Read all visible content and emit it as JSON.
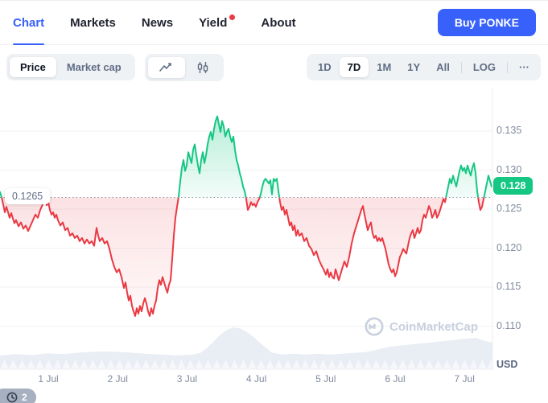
{
  "nav": {
    "tabs": [
      {
        "label": "Chart",
        "active": true,
        "dot": false
      },
      {
        "label": "Markets",
        "active": false,
        "dot": false
      },
      {
        "label": "News",
        "active": false,
        "dot": false
      },
      {
        "label": "Yield",
        "active": false,
        "dot": true
      },
      {
        "label": "About",
        "active": false,
        "dot": false
      }
    ],
    "buy_button_label": "Buy PONKE"
  },
  "toolbar": {
    "metric_toggle": {
      "options": [
        "Price",
        "Market cap"
      ],
      "active": "Price"
    },
    "chart_type_toggle": {
      "options": [
        "line",
        "candlestick"
      ],
      "active": "line"
    },
    "range_selector": {
      "options": [
        "1D",
        "7D",
        "1M",
        "1Y",
        "All"
      ],
      "active": "7D",
      "log_label": "LOG",
      "more_label": "···"
    }
  },
  "chart_data": {
    "type": "line",
    "title": "PONKE 7-day price chart",
    "unit_label": "USD",
    "legend_position": "none",
    "grid": true,
    "baseline_value": 0.1265,
    "baseline_label": "0.1265",
    "current_price_value": 0.128,
    "current_price_label": "0.128",
    "y_ticks": [
      0.11,
      0.115,
      0.12,
      0.125,
      0.13,
      0.135
    ],
    "ylim": [
      0.1075,
      0.1375
    ],
    "x_labels": [
      "1 Jul",
      "2 Jul",
      "3 Jul",
      "4 Jul",
      "5 Jul",
      "6 Jul",
      "7 Jul"
    ],
    "colors": {
      "up": "#16c784",
      "down": "#ea3943",
      "accent": "#3861fb",
      "volume": "#e9edf4"
    },
    "points": [
      [
        0,
        0.1272
      ],
      [
        2,
        0.1265
      ],
      [
        4,
        0.1256
      ],
      [
        6,
        0.1246
      ],
      [
        8,
        0.1253
      ],
      [
        10,
        0.1246
      ],
      [
        12,
        0.1239
      ],
      [
        14,
        0.1245
      ],
      [
        16,
        0.1238
      ],
      [
        18,
        0.1232
      ],
      [
        20,
        0.1236
      ],
      [
        23,
        0.1228
      ],
      [
        26,
        0.1233
      ],
      [
        29,
        0.1225
      ],
      [
        32,
        0.1229
      ],
      [
        35,
        0.1222
      ],
      [
        38,
        0.1229
      ],
      [
        41,
        0.1236
      ],
      [
        44,
        0.1243
      ],
      [
        47,
        0.1239
      ],
      [
        50,
        0.1249
      ],
      [
        53,
        0.1256
      ],
      [
        56,
        0.1262
      ],
      [
        58,
        0.1255
      ],
      [
        60,
        0.1259
      ],
      [
        62,
        0.1249
      ],
      [
        64,
        0.1243
      ],
      [
        66,
        0.1246
      ],
      [
        68,
        0.1239
      ],
      [
        70,
        0.1243
      ],
      [
        72,
        0.1236
      ],
      [
        75,
        0.1229
      ],
      [
        78,
        0.1233
      ],
      [
        81,
        0.1223
      ],
      [
        84,
        0.1226
      ],
      [
        87,
        0.1216
      ],
      [
        90,
        0.1219
      ],
      [
        93,
        0.1213
      ],
      [
        96,
        0.1216
      ],
      [
        99,
        0.1209
      ],
      [
        102,
        0.1213
      ],
      [
        105,
        0.1206
      ],
      [
        108,
        0.1211
      ],
      [
        111,
        0.1206
      ],
      [
        114,
        0.1209
      ],
      [
        117,
        0.1203
      ],
      [
        120,
        0.1226
      ],
      [
        122,
        0.1216
      ],
      [
        124,
        0.1209
      ],
      [
        127,
        0.1213
      ],
      [
        130,
        0.1206
      ],
      [
        133,
        0.1209
      ],
      [
        136,
        0.1199
      ],
      [
        139,
        0.1186
      ],
      [
        142,
        0.1176
      ],
      [
        145,
        0.1169
      ],
      [
        148,
        0.1173
      ],
      [
        151,
        0.1163
      ],
      [
        154,
        0.1149
      ],
      [
        156,
        0.1156
      ],
      [
        158,
        0.1143
      ],
      [
        160,
        0.1133
      ],
      [
        162,
        0.1139
      ],
      [
        164,
        0.1126
      ],
      [
        166,
        0.1119
      ],
      [
        168,
        0.1113
      ],
      [
        170,
        0.1123
      ],
      [
        172,
        0.1116
      ],
      [
        174,
        0.1126
      ],
      [
        176,
        0.1119
      ],
      [
        178,
        0.1129
      ],
      [
        180,
        0.1136
      ],
      [
        182,
        0.1129
      ],
      [
        184,
        0.1119
      ],
      [
        186,
        0.1113
      ],
      [
        188,
        0.1123
      ],
      [
        190,
        0.1116
      ],
      [
        192,
        0.1126
      ],
      [
        194,
        0.1133
      ],
      [
        196,
        0.1149
      ],
      [
        198,
        0.1159
      ],
      [
        200,
        0.1153
      ],
      [
        202,
        0.1163
      ],
      [
        204,
        0.1156
      ],
      [
        206,
        0.1149
      ],
      [
        208,
        0.1143
      ],
      [
        210,
        0.1153
      ],
      [
        212,
        0.1159
      ],
      [
        214,
        0.1186
      ],
      [
        216,
        0.1216
      ],
      [
        218,
        0.1239
      ],
      [
        220,
        0.1253
      ],
      [
        222,
        0.1266
      ],
      [
        224,
        0.1286
      ],
      [
        226,
        0.1303
      ],
      [
        228,
        0.1313
      ],
      [
        230,
        0.1299
      ],
      [
        232,
        0.1306
      ],
      [
        234,
        0.1323
      ],
      [
        236,
        0.1316
      ],
      [
        238,
        0.1309
      ],
      [
        240,
        0.1326
      ],
      [
        242,
        0.1333
      ],
      [
        244,
        0.1319
      ],
      [
        246,
        0.1306
      ],
      [
        248,
        0.1296
      ],
      [
        250,
        0.1313
      ],
      [
        252,
        0.1323
      ],
      [
        254,
        0.1309
      ],
      [
        256,
        0.1319
      ],
      [
        258,
        0.1333
      ],
      [
        260,
        0.1343
      ],
      [
        262,
        0.1349
      ],
      [
        264,
        0.1339
      ],
      [
        266,
        0.1353
      ],
      [
        268,
        0.1363
      ],
      [
        270,
        0.1369
      ],
      [
        272,
        0.1359
      ],
      [
        274,
        0.1349
      ],
      [
        276,
        0.1363
      ],
      [
        278,
        0.1356
      ],
      [
        280,
        0.1343
      ],
      [
        282,
        0.1349
      ],
      [
        284,
        0.1353
      ],
      [
        286,
        0.1343
      ],
      [
        288,
        0.1336
      ],
      [
        290,
        0.1343
      ],
      [
        292,
        0.1326
      ],
      [
        294,
        0.1313
      ],
      [
        296,
        0.1306
      ],
      [
        298,
        0.1296
      ],
      [
        300,
        0.1289
      ],
      [
        302,
        0.1279
      ],
      [
        304,
        0.1273
      ],
      [
        306,
        0.1263
      ],
      [
        308,
        0.1249
      ],
      [
        310,
        0.1253
      ],
      [
        312,
        0.1259
      ],
      [
        314,
        0.1255
      ],
      [
        316,
        0.1257
      ],
      [
        318,
        0.1253
      ],
      [
        320,
        0.1259
      ],
      [
        322,
        0.1263
      ],
      [
        324,
        0.1269
      ],
      [
        326,
        0.1279
      ],
      [
        328,
        0.1286
      ],
      [
        330,
        0.1289
      ],
      [
        332,
        0.1286
      ],
      [
        334,
        0.1283
      ],
      [
        336,
        0.1287
      ],
      [
        338,
        0.1269
      ],
      [
        340,
        0.1289
      ],
      [
        342,
        0.1286
      ],
      [
        344,
        0.1289
      ],
      [
        346,
        0.1273
      ],
      [
        348,
        0.1259
      ],
      [
        350,
        0.1249
      ],
      [
        352,
        0.1253
      ],
      [
        354,
        0.1243
      ],
      [
        356,
        0.1249
      ],
      [
        358,
        0.1239
      ],
      [
        360,
        0.1229
      ],
      [
        362,
        0.1233
      ],
      [
        364,
        0.1223
      ],
      [
        366,
        0.1229
      ],
      [
        368,
        0.1216
      ],
      [
        370,
        0.1223
      ],
      [
        372,
        0.1216
      ],
      [
        375,
        0.1219
      ],
      [
        378,
        0.1209
      ],
      [
        381,
        0.1213
      ],
      [
        384,
        0.1203
      ],
      [
        387,
        0.1199
      ],
      [
        390,
        0.1191
      ],
      [
        393,
        0.1196
      ],
      [
        396,
        0.1186
      ],
      [
        399,
        0.1179
      ],
      [
        402,
        0.1173
      ],
      [
        405,
        0.1166
      ],
      [
        407,
        0.1173
      ],
      [
        409,
        0.1163
      ],
      [
        411,
        0.1169
      ],
      [
        413,
        0.1163
      ],
      [
        415,
        0.1161
      ],
      [
        417,
        0.1173
      ],
      [
        419,
        0.1166
      ],
      [
        421,
        0.1159
      ],
      [
        423,
        0.1166
      ],
      [
        425,
        0.1173
      ],
      [
        428,
        0.1183
      ],
      [
        431,
        0.1176
      ],
      [
        434,
        0.1189
      ],
      [
        437,
        0.1206
      ],
      [
        440,
        0.1219
      ],
      [
        443,
        0.1229
      ],
      [
        446,
        0.1239
      ],
      [
        449,
        0.1249
      ],
      [
        451,
        0.1254
      ],
      [
        453,
        0.1243
      ],
      [
        455,
        0.1233
      ],
      [
        457,
        0.1223
      ],
      [
        459,
        0.1229
      ],
      [
        461,
        0.1233
      ],
      [
        463,
        0.1219
      ],
      [
        465,
        0.1213
      ],
      [
        467,
        0.1216
      ],
      [
        469,
        0.1209
      ],
      [
        471,
        0.1213
      ],
      [
        473,
        0.1209
      ],
      [
        475,
        0.1213
      ],
      [
        477,
        0.1206
      ],
      [
        479,
        0.1199
      ],
      [
        481,
        0.1189
      ],
      [
        483,
        0.1179
      ],
      [
        485,
        0.1173
      ],
      [
        487,
        0.1169
      ],
      [
        489,
        0.1173
      ],
      [
        491,
        0.1164
      ],
      [
        493,
        0.1169
      ],
      [
        495,
        0.1179
      ],
      [
        497,
        0.1189
      ],
      [
        499,
        0.1193
      ],
      [
        501,
        0.1199
      ],
      [
        503,
        0.1196
      ],
      [
        505,
        0.1193
      ],
      [
        507,
        0.1203
      ],
      [
        509,
        0.1213
      ],
      [
        511,
        0.1219
      ],
      [
        513,
        0.1223
      ],
      [
        515,
        0.1213
      ],
      [
        517,
        0.1219
      ],
      [
        519,
        0.1226
      ],
      [
        521,
        0.1219
      ],
      [
        523,
        0.1223
      ],
      [
        525,
        0.1236
      ],
      [
        527,
        0.1243
      ],
      [
        529,
        0.1239
      ],
      [
        531,
        0.1246
      ],
      [
        533,
        0.1254
      ],
      [
        535,
        0.1249
      ],
      [
        537,
        0.1239
      ],
      [
        539,
        0.1243
      ],
      [
        541,
        0.1249
      ],
      [
        543,
        0.1239
      ],
      [
        545,
        0.1243
      ],
      [
        547,
        0.1249
      ],
      [
        549,
        0.1256
      ],
      [
        551,
        0.1263
      ],
      [
        553,
        0.1259
      ],
      [
        555,
        0.1269
      ],
      [
        557,
        0.1279
      ],
      [
        559,
        0.1289
      ],
      [
        561,
        0.1283
      ],
      [
        563,
        0.1293
      ],
      [
        565,
        0.1286
      ],
      [
        567,
        0.1279
      ],
      [
        569,
        0.1289
      ],
      [
        571,
        0.1299
      ],
      [
        573,
        0.1306
      ],
      [
        575,
        0.1299
      ],
      [
        577,
        0.1303
      ],
      [
        579,
        0.1296
      ],
      [
        581,
        0.1306
      ],
      [
        583,
        0.1299
      ],
      [
        585,
        0.1293
      ],
      [
        587,
        0.1303
      ],
      [
        589,
        0.1309
      ],
      [
        591,
        0.1296
      ],
      [
        593,
        0.1273
      ],
      [
        595,
        0.1259
      ],
      [
        597,
        0.1249
      ],
      [
        599,
        0.1253
      ],
      [
        601,
        0.1263
      ],
      [
        603,
        0.1273
      ],
      [
        605,
        0.1283
      ],
      [
        607,
        0.1293
      ],
      [
        609,
        0.1286
      ],
      [
        611,
        0.1279
      ],
      [
        612,
        0.128
      ]
    ],
    "volume_profile": [
      [
        0,
        0.33
      ],
      [
        20,
        0.36
      ],
      [
        40,
        0.34
      ],
      [
        60,
        0.38
      ],
      [
        80,
        0.36
      ],
      [
        100,
        0.4
      ],
      [
        120,
        0.42
      ],
      [
        140,
        0.42
      ],
      [
        160,
        0.4
      ],
      [
        180,
        0.37
      ],
      [
        200,
        0.35
      ],
      [
        220,
        0.33
      ],
      [
        240,
        0.35
      ],
      [
        250,
        0.4
      ],
      [
        258,
        0.52
      ],
      [
        266,
        0.67
      ],
      [
        274,
        0.83
      ],
      [
        282,
        0.94
      ],
      [
        290,
        1.0
      ],
      [
        298,
        0.98
      ],
      [
        306,
        0.9
      ],
      [
        314,
        0.79
      ],
      [
        322,
        0.65
      ],
      [
        330,
        0.52
      ],
      [
        338,
        0.4
      ],
      [
        350,
        0.35
      ],
      [
        365,
        0.37
      ],
      [
        380,
        0.35
      ],
      [
        395,
        0.37
      ],
      [
        410,
        0.35
      ],
      [
        425,
        0.37
      ],
      [
        440,
        0.39
      ],
      [
        455,
        0.41
      ],
      [
        465,
        0.45
      ],
      [
        475,
        0.5
      ],
      [
        485,
        0.54
      ],
      [
        495,
        0.56
      ],
      [
        505,
        0.58
      ],
      [
        515,
        0.6
      ],
      [
        525,
        0.62
      ],
      [
        535,
        0.64
      ],
      [
        545,
        0.66
      ],
      [
        555,
        0.68
      ],
      [
        565,
        0.7
      ],
      [
        575,
        0.72
      ],
      [
        585,
        0.74
      ],
      [
        592,
        0.75
      ],
      [
        600,
        0.69
      ],
      [
        606,
        0.66
      ],
      [
        612,
        0.64
      ]
    ]
  },
  "watermark_label": "CoinMarketCap",
  "history_badge_count": "2"
}
